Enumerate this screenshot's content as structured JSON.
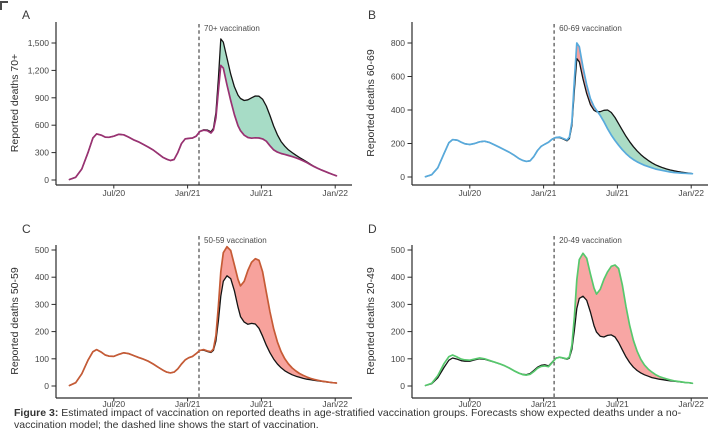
{
  "figure": {
    "caption_prefix": "Figure 3:",
    "caption_text": " Estimated impact of vaccination on reported deaths in age-stratified vaccination groups. Forecasts show expected deaths under a no-vaccination model; the dashed line shows the start of vaccination."
  },
  "chart_data": {
    "type": "line",
    "x_tick_months": [
      4,
      10,
      16,
      22
    ],
    "x_tick_labels": [
      "Jul/20",
      "Jan/21",
      "Jul/21",
      "Jan/22"
    ],
    "x_unit": "months since Mar/20 (Jul/20=4, Jan/21=10, Jul/21=16, Jan/22=22)",
    "grid": "off",
    "legend": "none",
    "series_meaning": {
      "observed": "reported deaths (colored line)",
      "counterfactual": "model forecast without vaccination (black line)",
      "averted_area": "deaths averted (green shading)",
      "excess_area": "observed above counterfactual (red shading)"
    },
    "colors": {
      "counterfactual": "#141414",
      "axis": "#2b2b2b",
      "tick_text": "#454545",
      "dashed": "#4a4a4a"
    },
    "months": [
      0.4,
      0.9,
      1.4,
      1.9,
      2.3,
      2.6,
      3.0,
      3.3,
      3.6,
      4.0,
      4.4,
      4.8,
      5.2,
      5.6,
      6.0,
      6.4,
      6.8,
      7.2,
      7.6,
      8.0,
      8.3,
      8.6,
      8.9,
      9.2,
      9.5,
      9.8,
      10.1,
      10.4,
      10.7,
      11.0,
      11.3,
      11.6,
      11.9,
      12.1,
      12.3,
      12.5,
      12.7,
      12.9,
      13.2,
      13.5,
      13.8,
      14.1,
      14.3,
      14.6,
      14.9,
      15.2,
      15.5,
      15.8,
      16.1,
      16.4,
      16.7,
      17.0,
      17.3,
      17.6,
      17.9,
      18.2,
      18.5,
      18.8,
      19.1,
      19.4,
      19.7,
      20.0,
      20.3,
      20.6,
      20.9,
      21.2,
      21.5,
      21.8,
      22.1
    ],
    "panels": [
      {
        "label": "A",
        "ylabel": "Reported deaths 70+",
        "vaccination_label": "70+ vaccination",
        "vaccination_month": 10.93,
        "observed_color": "#993272",
        "excess_fill": "#f5a2a0",
        "averted_fill": "#a7dcc6",
        "ylim": [
          0,
          1500
        ],
        "y_ticks": [
          0,
          300,
          600,
          900,
          1200,
          1500
        ],
        "y_tick_labels": [
          "0",
          "300",
          "600",
          "900",
          "1,200",
          "1,500"
        ],
        "observed": [
          5,
          30,
          120,
          300,
          460,
          505,
          490,
          470,
          468,
          480,
          500,
          495,
          470,
          440,
          418,
          390,
          360,
          328,
          288,
          248,
          228,
          213,
          225,
          300,
          400,
          450,
          455,
          460,
          480,
          532,
          545,
          540,
          515,
          548,
          680,
          980,
          1255,
          1225,
          1040,
          870,
          715,
          595,
          540,
          490,
          465,
          458,
          462,
          460,
          450,
          425,
          375,
          330,
          305,
          290,
          280,
          268,
          256,
          243,
          228,
          210,
          190,
          168,
          146,
          126,
          108,
          92,
          76,
          60,
          46
        ],
        "counterfactual": [
          5,
          30,
          120,
          300,
          460,
          505,
          490,
          470,
          468,
          480,
          500,
          495,
          470,
          440,
          418,
          390,
          360,
          328,
          288,
          248,
          228,
          213,
          225,
          300,
          400,
          450,
          455,
          460,
          480,
          532,
          550,
          548,
          528,
          565,
          735,
          1110,
          1545,
          1510,
          1335,
          1160,
          1020,
          930,
          892,
          870,
          878,
          900,
          920,
          918,
          885,
          810,
          705,
          590,
          495,
          420,
          370,
          330,
          300,
          272,
          246,
          222,
          198,
          172,
          148,
          127,
          108,
          92,
          76,
          60,
          46
        ]
      },
      {
        "label": "B",
        "ylabel": "Reported deaths 60-69",
        "vaccination_label": "60-69 vaccination",
        "vaccination_month": 10.85,
        "observed_color": "#58aadc",
        "excess_fill": "#f4a1a0",
        "averted_fill": "#abdcc5",
        "ylim": [
          0,
          800
        ],
        "y_ticks": [
          0,
          200,
          400,
          600,
          800
        ],
        "y_tick_labels": [
          "0",
          "200",
          "400",
          "600",
          "800"
        ],
        "observed": [
          2,
          14,
          55,
          140,
          205,
          223,
          220,
          208,
          198,
          194,
          200,
          210,
          214,
          206,
          192,
          178,
          163,
          148,
          130,
          110,
          99,
          93,
          97,
          122,
          158,
          183,
          196,
          208,
          226,
          236,
          238,
          230,
          221,
          238,
          330,
          580,
          800,
          778,
          655,
          550,
          468,
          420,
          398,
          368,
          330,
          288,
          250,
          218,
          190,
          163,
          140,
          120,
          104,
          91,
          80,
          70,
          62,
          55,
          48,
          43,
          38,
          34,
          30,
          27,
          25,
          23,
          22,
          21,
          20
        ],
        "counterfactual": [
          2,
          14,
          55,
          140,
          205,
          223,
          220,
          208,
          198,
          194,
          200,
          210,
          214,
          206,
          192,
          178,
          163,
          148,
          130,
          110,
          99,
          93,
          97,
          122,
          158,
          183,
          196,
          208,
          226,
          236,
          235,
          227,
          216,
          230,
          308,
          520,
          706,
          688,
          585,
          498,
          432,
          398,
          390,
          390,
          398,
          400,
          385,
          355,
          318,
          280,
          243,
          210,
          181,
          156,
          134,
          115,
          99,
          85,
          73,
          63,
          55,
          48,
          42,
          37,
          33,
          29,
          26,
          23,
          20
        ]
      },
      {
        "label": "C",
        "ylabel": "Reported deaths 50-59",
        "vaccination_label": "50-59 vaccination",
        "vaccination_month": 10.93,
        "observed_color": "#c65b36",
        "excess_fill": "#f7a29c",
        "averted_fill": "#a7dcc6",
        "ylim": [
          0,
          500
        ],
        "y_ticks": [
          0,
          100,
          200,
          300,
          400,
          500
        ],
        "y_tick_labels": [
          "0",
          "100",
          "200",
          "300",
          "400",
          "500"
        ],
        "observed": [
          2,
          12,
          45,
          95,
          126,
          134,
          124,
          114,
          110,
          109,
          116,
          122,
          119,
          112,
          105,
          99,
          91,
          81,
          69,
          58,
          51,
          48,
          51,
          63,
          81,
          96,
          104,
          109,
          119,
          131,
          134,
          129,
          126,
          136,
          185,
          295,
          420,
          490,
          512,
          498,
          445,
          392,
          368,
          385,
          425,
          455,
          468,
          462,
          420,
          345,
          272,
          210,
          162,
          126,
          100,
          81,
          66,
          55,
          46,
          39,
          33,
          28,
          24,
          21,
          18,
          16,
          14,
          12,
          11
        ],
        "counterfactual": [
          2,
          12,
          45,
          95,
          126,
          134,
          124,
          114,
          110,
          109,
          116,
          122,
          119,
          112,
          105,
          99,
          91,
          81,
          69,
          58,
          51,
          48,
          51,
          63,
          81,
          96,
          104,
          109,
          119,
          131,
          132,
          127,
          123,
          131,
          165,
          240,
          330,
          385,
          405,
          395,
          350,
          290,
          255,
          235,
          227,
          230,
          228,
          212,
          183,
          150,
          122,
          99,
          81,
          67,
          56,
          48,
          41,
          36,
          32,
          28,
          25,
          23,
          21,
          19,
          17,
          15.5,
          13.5,
          12,
          11
        ]
      },
      {
        "label": "D",
        "ylabel": "Reported deaths 20-49",
        "vaccination_label": "20-49 vaccination",
        "vaccination_month": 10.85,
        "observed_color": "#57c86d",
        "excess_fill": "#f8a6a4",
        "averted_fill": "#a7dcc6",
        "ylim": [
          0,
          500
        ],
        "y_ticks": [
          0,
          100,
          200,
          300,
          400,
          500
        ],
        "y_tick_labels": [
          "0",
          "100",
          "200",
          "300",
          "400",
          "500"
        ],
        "observed": [
          2,
          10,
          38,
          82,
          108,
          114,
          106,
          99,
          96,
          95,
          99,
          103,
          100,
          94,
          88,
          82,
          75,
          66,
          56,
          47,
          42,
          40,
          43,
          53,
          65,
          72,
          74,
          71,
          86,
          102,
          106,
          103,
          100,
          107,
          150,
          255,
          390,
          465,
          488,
          470,
          412,
          360,
          338,
          355,
          392,
          420,
          440,
          445,
          432,
          372,
          292,
          222,
          168,
          128,
          98,
          77,
          62,
          51,
          42,
          35,
          30,
          26,
          22,
          19,
          17,
          15,
          13,
          12,
          10
        ],
        "counterfactual": [
          2,
          8,
          30,
          68,
          95,
          103,
          98,
          93,
          91,
          91,
          96,
          100,
          98,
          93,
          88,
          82,
          75,
          66,
          56,
          47,
          43,
          42,
          46,
          57,
          69,
          76,
          78,
          74,
          88,
          103,
          106,
          102,
          98,
          103,
          135,
          205,
          285,
          322,
          330,
          315,
          272,
          222,
          198,
          183,
          180,
          186,
          188,
          180,
          160,
          133,
          107,
          86,
          69,
          57,
          48,
          41,
          36,
          31,
          28,
          25,
          23,
          21,
          19,
          17.5,
          16,
          14.5,
          13,
          12,
          10
        ]
      }
    ]
  }
}
